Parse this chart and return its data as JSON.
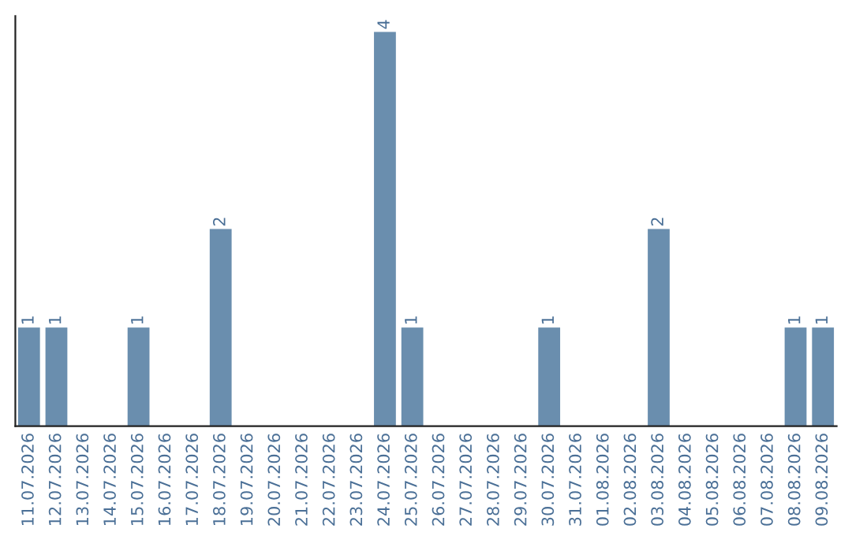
{
  "chart_data": {
    "type": "bar",
    "categories": [
      "11.07.2026",
      "12.07.2026",
      "13.07.2026",
      "14.07.2026",
      "15.07.2026",
      "16.07.2026",
      "17.07.2026",
      "18.07.2026",
      "19.07.2026",
      "20.07.2026",
      "21.07.2026",
      "22.07.2026",
      "23.07.2026",
      "24.07.2026",
      "25.07.2026",
      "26.07.2026",
      "27.07.2026",
      "28.07.2026",
      "29.07.2026",
      "30.07.2026",
      "31.07.2026",
      "01.08.2026",
      "02.08.2026",
      "03.08.2026",
      "04.08.2026",
      "05.08.2026",
      "06.08.2026",
      "07.08.2026",
      "08.08.2026",
      "09.08.2026"
    ],
    "values": [
      1,
      1,
      0,
      0,
      1,
      0,
      0,
      2,
      0,
      0,
      0,
      0,
      0,
      4,
      1,
      0,
      0,
      0,
      0,
      1,
      0,
      0,
      0,
      2,
      0,
      0,
      0,
      0,
      1,
      1
    ],
    "value_labels": [
      "1",
      "1",
      null,
      null,
      "1",
      null,
      null,
      "2",
      null,
      null,
      null,
      null,
      null,
      "4",
      "1",
      null,
      null,
      null,
      null,
      "1",
      null,
      null,
      null,
      "2",
      null,
      null,
      null,
      null,
      "1",
      "1"
    ],
    "color": "#6a8eae",
    "ylim": [
      0,
      4.16
    ],
    "tick_labels": "x",
    "grid": false,
    "legend": false
  }
}
